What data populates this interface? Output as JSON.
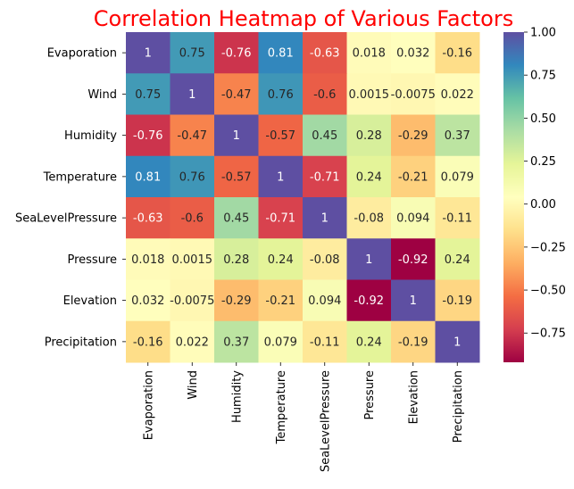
{
  "chart_data": {
    "type": "heatmap",
    "title": "Correlation Heatmap of Various Factors",
    "title_color": "#ff0000",
    "colormap": "Spectral",
    "rows": [
      "Evaporation",
      "Wind",
      "Humidity",
      "Temperature",
      "SeaLevelPressure",
      "Pressure",
      "Elevation",
      "Precipitation"
    ],
    "columns": [
      "Evaporation",
      "Wind",
      "Humidity",
      "Temperature",
      "SeaLevelPressure",
      "Pressure",
      "Elevation",
      "Precipitation"
    ],
    "values": [
      [
        1,
        0.75,
        -0.76,
        0.81,
        -0.63,
        0.018,
        0.032,
        -0.16
      ],
      [
        0.75,
        1,
        -0.47,
        0.76,
        -0.6,
        0.0015,
        -0.0075,
        0.022
      ],
      [
        -0.76,
        -0.47,
        1,
        -0.57,
        0.45,
        0.28,
        -0.29,
        0.37
      ],
      [
        0.81,
        0.76,
        -0.57,
        1,
        -0.71,
        0.24,
        -0.21,
        0.079
      ],
      [
        -0.63,
        -0.6,
        0.45,
        -0.71,
        1,
        -0.08,
        0.094,
        -0.11
      ],
      [
        0.018,
        0.0015,
        0.28,
        0.24,
        -0.08,
        1,
        -0.92,
        0.24
      ],
      [
        0.032,
        -0.0075,
        -0.29,
        -0.21,
        0.094,
        -0.92,
        1,
        -0.19
      ],
      [
        -0.16,
        0.022,
        0.37,
        0.079,
        -0.11,
        0.24,
        -0.19,
        1
      ]
    ],
    "annotations": [
      [
        "1",
        "0.75",
        "-0.76",
        "0.81",
        "-0.63",
        "0.018",
        "0.032",
        "-0.16"
      ],
      [
        "0.75",
        "1",
        "-0.47",
        "0.76",
        "-0.6",
        "0.0015",
        "-0.0075",
        "0.022"
      ],
      [
        "-0.76",
        "-0.47",
        "1",
        "-0.57",
        "0.45",
        "0.28",
        "-0.29",
        "0.37"
      ],
      [
        "0.81",
        "0.76",
        "-0.57",
        "1",
        "-0.71",
        "0.24",
        "-0.21",
        "0.079"
      ],
      [
        "-0.63",
        "-0.6",
        "0.45",
        "-0.71",
        "1",
        "-0.08",
        "0.094",
        "-0.11"
      ],
      [
        "0.018",
        "0.0015",
        "0.28",
        "0.24",
        "-0.08",
        "1",
        "-0.92",
        "0.24"
      ],
      [
        "0.032",
        "-0.0075",
        "-0.29",
        "-0.21",
        "0.094",
        "-0.92",
        "1",
        "-0.19"
      ],
      [
        "-0.16",
        "0.022",
        "0.37",
        "0.079",
        "-0.11",
        "0.24",
        "-0.19",
        "1"
      ]
    ],
    "colorbar": {
      "range": [
        -0.92,
        1
      ],
      "ticks": [
        1.0,
        0.75,
        0.5,
        0.25,
        0.0,
        -0.25,
        -0.5,
        -0.75
      ],
      "tick_labels": [
        "1.00",
        "0.75",
        "0.50",
        "0.25",
        "0.00",
        "−0.25",
        "−0.50",
        "−0.75"
      ]
    }
  }
}
